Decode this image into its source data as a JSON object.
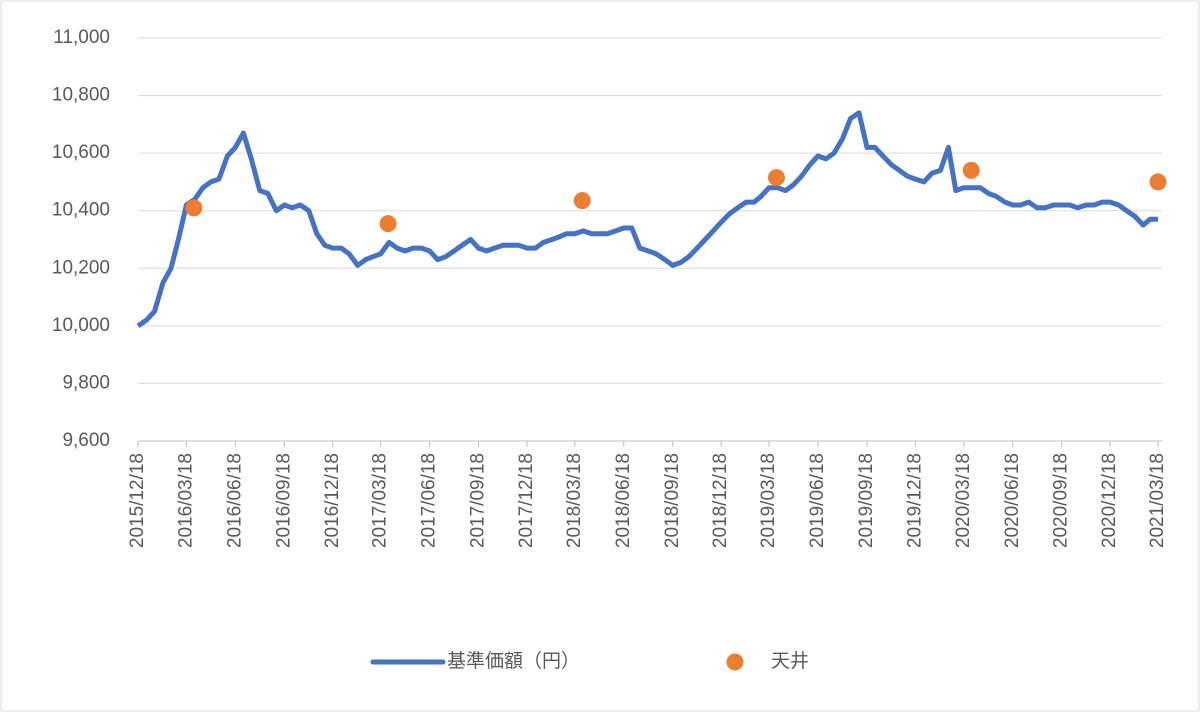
{
  "chart_data": {
    "type": "line",
    "series": [
      {
        "name": "基準価額（円）",
        "color": "#4472c4",
        "type": "line",
        "x": [
          "2015/12/18",
          "2016/01/03",
          "2016/01/18",
          "2016/02/03",
          "2016/02/18",
          "2016/03/03",
          "2016/03/18",
          "2016/04/03",
          "2016/04/18",
          "2016/05/03",
          "2016/05/18",
          "2016/06/03",
          "2016/06/18",
          "2016/07/03",
          "2016/07/18",
          "2016/08/03",
          "2016/08/18",
          "2016/09/03",
          "2016/09/18",
          "2016/10/03",
          "2016/10/18",
          "2016/11/03",
          "2016/11/18",
          "2016/12/03",
          "2016/12/18",
          "2017/01/03",
          "2017/01/18",
          "2017/02/03",
          "2017/02/18",
          "2017/03/03",
          "2017/03/18",
          "2017/04/03",
          "2017/04/18",
          "2017/05/03",
          "2017/05/18",
          "2017/06/03",
          "2017/06/18",
          "2017/07/03",
          "2017/07/18",
          "2017/08/03",
          "2017/08/18",
          "2017/09/03",
          "2017/09/18",
          "2017/10/03",
          "2017/10/18",
          "2017/11/03",
          "2017/11/18",
          "2017/12/03",
          "2017/12/18",
          "2018/01/03",
          "2018/01/18",
          "2018/02/03",
          "2018/02/18",
          "2018/03/03",
          "2018/03/18",
          "2018/04/03",
          "2018/04/18",
          "2018/05/03",
          "2018/05/18",
          "2018/06/03",
          "2018/06/18",
          "2018/07/03",
          "2018/07/18",
          "2018/08/03",
          "2018/08/18",
          "2018/09/03",
          "2018/09/18",
          "2018/10/03",
          "2018/10/18",
          "2018/11/03",
          "2018/11/18",
          "2018/12/03",
          "2018/12/18",
          "2019/01/03",
          "2019/01/18",
          "2019/02/03",
          "2019/02/18",
          "2019/03/03",
          "2019/03/18",
          "2019/04/03",
          "2019/04/18",
          "2019/05/03",
          "2019/05/18",
          "2019/06/03",
          "2019/06/18",
          "2019/07/03",
          "2019/07/18",
          "2019/08/03",
          "2019/08/18",
          "2019/09/03",
          "2019/09/18",
          "2019/10/03",
          "2019/10/18",
          "2019/11/03",
          "2019/11/18",
          "2019/12/03",
          "2019/12/18",
          "2020/01/03",
          "2020/01/18",
          "2020/02/03",
          "2020/02/18",
          "2020/03/03",
          "2020/03/18",
          "2020/04/03",
          "2020/04/18",
          "2020/05/03",
          "2020/05/18",
          "2020/06/03",
          "2020/06/18",
          "2020/07/03",
          "2020/07/18",
          "2020/08/03",
          "2020/08/18",
          "2020/09/03",
          "2020/09/18",
          "2020/10/03",
          "2020/10/18",
          "2020/11/03",
          "2020/11/18",
          "2020/12/03",
          "2020/12/18",
          "2021/01/03",
          "2021/01/18",
          "2021/02/03",
          "2021/02/18",
          "2021/03/03",
          "2021/03/18"
        ],
        "values": [
          10000,
          10020,
          10050,
          10150,
          10200,
          10300,
          10420,
          10440,
          10480,
          10500,
          10510,
          10590,
          10620,
          10670,
          10580,
          10470,
          10460,
          10400,
          10420,
          10410,
          10420,
          10400,
          10320,
          10280,
          10270,
          10270,
          10250,
          10210,
          10230,
          10240,
          10250,
          10290,
          10270,
          10260,
          10270,
          10270,
          10260,
          10230,
          10240,
          10260,
          10280,
          10300,
          10270,
          10260,
          10270,
          10280,
          10280,
          10280,
          10270,
          10270,
          10290,
          10300,
          10310,
          10320,
          10320,
          10330,
          10320,
          10320,
          10320,
          10330,
          10340,
          10340,
          10270,
          10260,
          10250,
          10230,
          10210,
          10220,
          10240,
          10270,
          10300,
          10330,
          10360,
          10390,
          10410,
          10430,
          10430,
          10450,
          10480,
          10480,
          10470,
          10490,
          10520,
          10560,
          10590,
          10580,
          10600,
          10650,
          10720,
          10740,
          10620,
          10620,
          10590,
          10560,
          10540,
          10520,
          10510,
          10500,
          10530,
          10540,
          10620,
          10470,
          10480,
          10480,
          10480,
          10460,
          10450,
          10430,
          10420,
          10420,
          10430,
          10410,
          10410,
          10420,
          10420,
          10420,
          10410,
          10420,
          10420,
          10430,
          10430,
          10420,
          10400,
          10380,
          10350,
          10370,
          10370
        ]
      },
      {
        "name": "天井",
        "color": "#ed7d31",
        "type": "scatter",
        "x": [
          "2016/04/01",
          "2017/04/01",
          "2018/04/01",
          "2019/04/01",
          "2020/04/01",
          "2021/03/18"
        ],
        "values": [
          10410,
          10355,
          10435,
          10515,
          10540,
          10500
        ]
      }
    ],
    "xlim": [
      "2015/12/18",
      "2021/03/18"
    ],
    "xticks": [
      "2015/12/18",
      "2016/03/18",
      "2016/06/18",
      "2016/09/18",
      "2016/12/18",
      "2017/03/18",
      "2017/06/18",
      "2017/09/18",
      "2017/12/18",
      "2018/03/18",
      "2018/06/18",
      "2018/09/18",
      "2018/12/18",
      "2019/03/18",
      "2019/06/18",
      "2019/09/18",
      "2019/12/18",
      "2020/03/18",
      "2020/06/18",
      "2020/09/18",
      "2020/12/18",
      "2021/03/18"
    ],
    "ylim": [
      9600,
      11000
    ],
    "yticks": [
      {
        "value": 9600,
        "label": "9,600"
      },
      {
        "value": 9800,
        "label": "9,800"
      },
      {
        "value": 10000,
        "label": "10,000"
      },
      {
        "value": 10200,
        "label": "10,200"
      },
      {
        "value": 10400,
        "label": "10,400"
      },
      {
        "value": 10600,
        "label": "10,600"
      },
      {
        "value": 10800,
        "label": "10,800"
      },
      {
        "value": 11000,
        "label": "11,000"
      }
    ],
    "grid": true,
    "legend": "bottom"
  }
}
